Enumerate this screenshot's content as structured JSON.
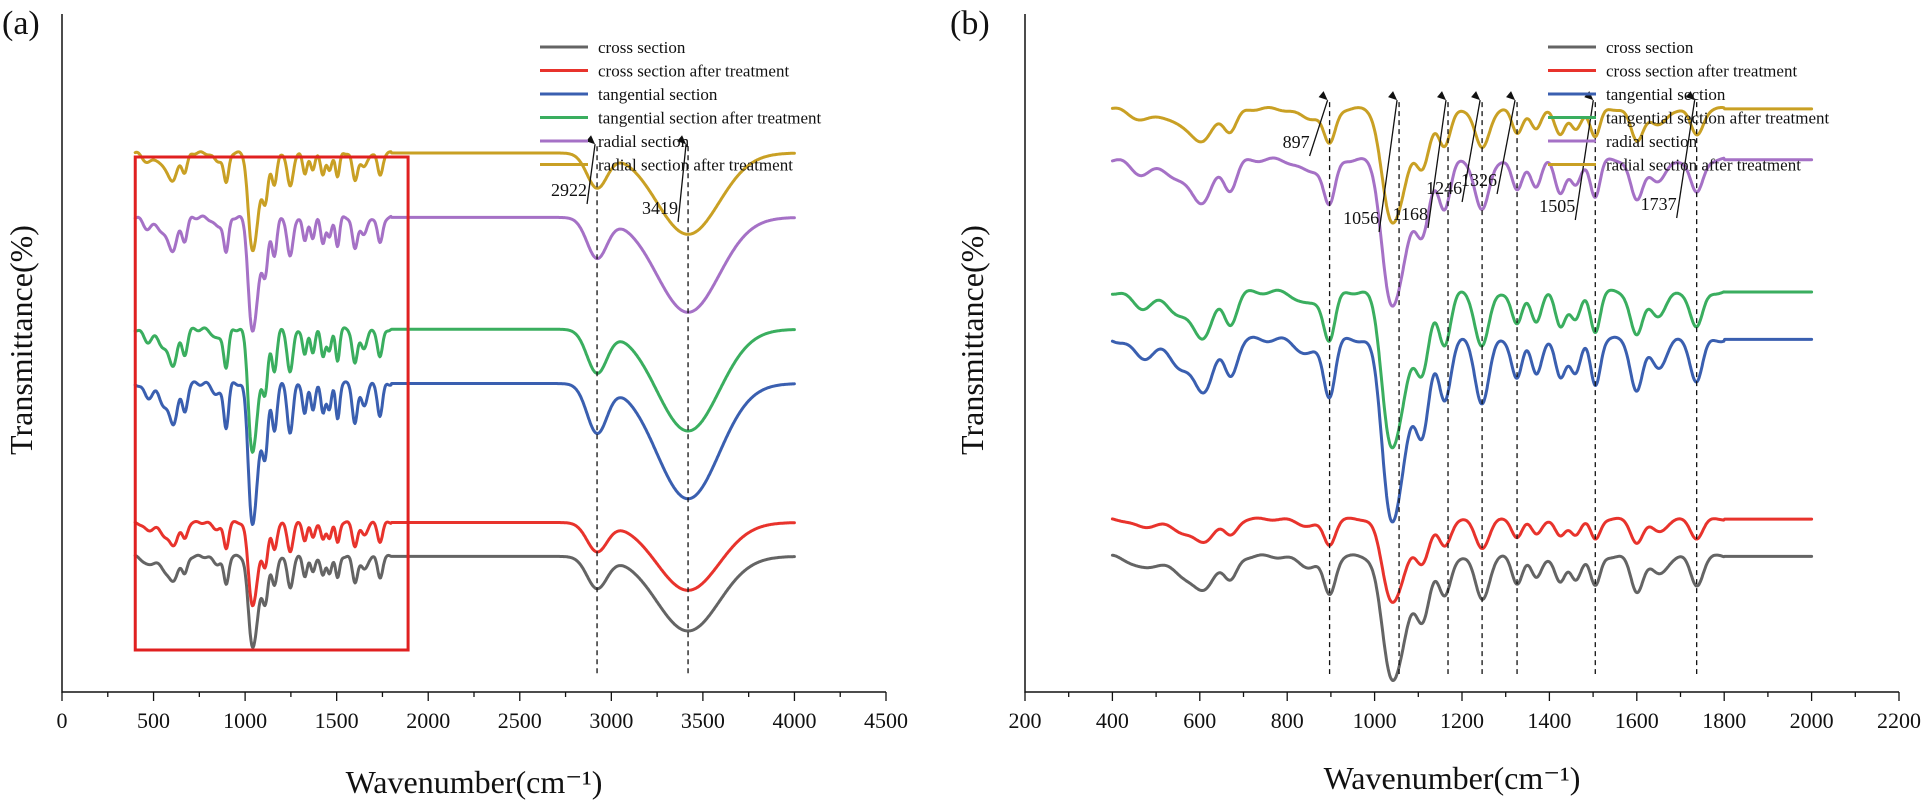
{
  "chart_data": [
    {
      "panel": "(a)",
      "type": "line",
      "xlabel": "Wavenumber(cm⁻¹)",
      "ylabel": "Transmittance(%)",
      "xlim": [
        0,
        4500
      ],
      "xticks": [
        "0",
        "500",
        "1000",
        "1500",
        "2000",
        "2500",
        "3000",
        "3500",
        "4000",
        "4500"
      ],
      "ylim": [
        0,
        100
      ],
      "grid": false,
      "legend_position": "top-right",
      "highlight_box": {
        "x_range": [
          400,
          1890
        ],
        "color": "#e02020"
      },
      "peak_markers": [
        {
          "label": "2922",
          "x": 2922
        },
        {
          "label": "3419",
          "x": 3419
        }
      ],
      "series": [
        {
          "name": "cross section",
          "color": "#646464",
          "offset": 20,
          "depth": 11
        },
        {
          "name": "cross section after treatment",
          "color": "#e8332c",
          "offset": 25,
          "depth": 10
        },
        {
          "name": "tangential section",
          "color": "#3a5fb0",
          "offset": 45.5,
          "depth": 17
        },
        {
          "name": "tangential section after treatment",
          "color": "#3aae5f",
          "offset": 53.5,
          "depth": 15
        },
        {
          "name": "radial section",
          "color": "#a571c6",
          "offset": 70,
          "depth": 14
        },
        {
          "name": "radial section  after treatment",
          "color": "#c9a024",
          "offset": 79.5,
          "depth": 12
        }
      ]
    },
    {
      "panel": "(b)",
      "type": "line",
      "xlabel": "Wavenumber(cm⁻¹)",
      "ylabel": "Transmittance(%)",
      "xlim": [
        200,
        2200
      ],
      "xticks": [
        "200",
        "400",
        "600",
        "800",
        "1000",
        "1200",
        "1400",
        "1600",
        "1800",
        "2000",
        "2200"
      ],
      "ylim": [
        0,
        100
      ],
      "grid": false,
      "legend_position": "top-right",
      "peak_markers": [
        {
          "label": "897",
          "x": 897
        },
        {
          "label": "1056",
          "x": 1056
        },
        {
          "label": "1168",
          "x": 1168
        },
        {
          "label": "1246",
          "x": 1246
        },
        {
          "label": "1326",
          "x": 1326
        },
        {
          "label": "1505",
          "x": 1505
        },
        {
          "label": "1737",
          "x": 1737
        }
      ],
      "series": [
        {
          "name": "cross section",
          "color": "#646464",
          "offset": 20,
          "depth": 15
        },
        {
          "name": "cross section after treatment",
          "color": "#e8332c",
          "offset": 25.5,
          "depth": 10
        },
        {
          "name": "tangential section",
          "color": "#3a5fb0",
          "offset": 52,
          "depth": 22
        },
        {
          "name": "tangential section after treatment",
          "color": "#3aae5f",
          "offset": 59,
          "depth": 19
        },
        {
          "name": "radial section",
          "color": "#a571c6",
          "offset": 78.5,
          "depth": 18
        },
        {
          "name": "radial section  after treatment",
          "color": "#c9a024",
          "offset": 86,
          "depth": 14
        }
      ]
    }
  ]
}
